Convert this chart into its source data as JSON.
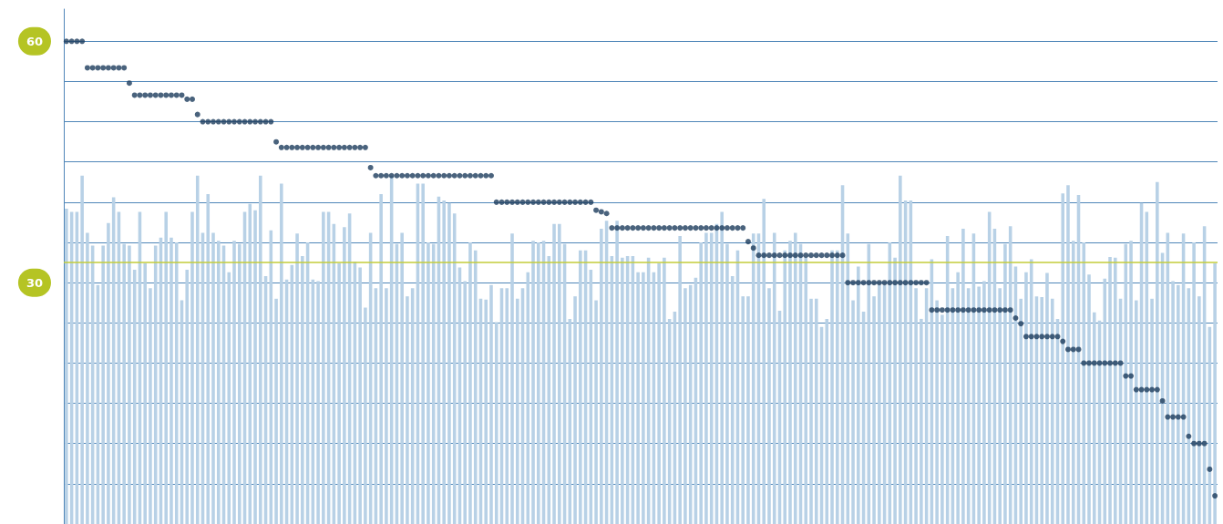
{
  "chart_data": {
    "type": "bar",
    "categories": [
      null,
      null,
      null,
      null,
      null,
      null,
      null,
      null,
      null,
      null,
      null,
      null,
      null,
      null,
      null,
      null,
      null,
      null,
      null,
      null,
      null,
      null,
      null,
      null,
      null,
      null,
      null,
      null,
      null,
      null,
      null,
      null,
      null,
      null,
      null,
      null,
      null,
      null,
      null,
      null,
      null,
      null,
      null,
      null,
      null,
      null,
      null,
      null,
      null,
      null,
      null,
      null,
      null,
      null,
      null,
      null,
      null,
      null,
      null,
      null,
      null,
      null,
      null,
      null,
      null,
      null,
      null,
      null,
      null,
      null,
      null,
      null,
      null,
      null,
      null,
      null,
      null,
      null,
      null,
      null,
      null,
      null,
      null,
      null,
      null,
      null,
      null,
      null,
      null,
      null,
      null,
      null,
      null,
      null,
      null,
      null,
      null,
      null,
      null,
      null,
      null,
      null,
      null,
      null,
      null,
      null,
      null,
      null,
      null,
      null,
      null,
      null,
      null,
      null,
      null,
      null,
      null,
      null,
      null,
      null,
      null,
      null,
      null,
      null,
      null,
      null,
      null,
      null,
      null,
      null,
      null,
      null,
      null,
      null,
      null,
      null,
      null,
      null,
      null,
      null,
      null,
      null,
      null,
      null,
      null,
      null,
      null,
      null,
      null,
      null,
      null,
      null,
      null,
      null,
      null,
      null,
      null,
      null,
      null,
      null,
      null,
      null,
      null,
      null,
      null,
      null,
      null,
      null,
      null,
      null,
      null,
      null,
      null,
      null,
      null,
      null,
      null,
      null,
      null,
      null,
      null,
      null,
      null,
      null,
      null,
      null,
      null,
      null,
      null,
      null,
      null,
      null,
      null,
      null,
      null,
      null,
      null,
      null,
      null,
      null,
      null,
      null,
      null,
      null,
      null,
      null,
      null,
      null,
      null,
      null,
      null,
      null,
      null,
      null,
      null,
      null,
      null,
      null,
      null,
      null
    ],
    "series": [
      {
        "type": "bar",
        "color": "#b8d1e6",
        "values": [
          39.2,
          38.8,
          38.8,
          43.3,
          36.2,
          34.6,
          29.7,
          34.6,
          37.4,
          40.6,
          38.8,
          34.8,
          34.6,
          31.6,
          38.8,
          32.4,
          29.3,
          34.6,
          35.6,
          38.8,
          35.6,
          35.0,
          27.8,
          31.6,
          38.8,
          43.3,
          36.2,
          41.0,
          36.2,
          35.2,
          34.6,
          31.3,
          35.2,
          34.8,
          38.8,
          39.8,
          39.0,
          43.3,
          30.8,
          36.5,
          28.0,
          42.3,
          30.4,
          32.2,
          36.1,
          33.3,
          35.0,
          30.4,
          30.2,
          38.8,
          38.8,
          37.3,
          32.4,
          36.9,
          38.6,
          32.6,
          31.9,
          26.9,
          36.2,
          29.3,
          41.0,
          29.3,
          43.3,
          34.8,
          36.2,
          28.3,
          29.3,
          42.3,
          42.3,
          35.0,
          34.8,
          40.7,
          40.2,
          39.9,
          38.6,
          31.9,
          30.2,
          35.0,
          34.0,
          28.0,
          27.9,
          29.7,
          25.1,
          29.3,
          29.3,
          36.1,
          28.0,
          29.3,
          31.3,
          35.2,
          35.0,
          35.2,
          33.3,
          37.3,
          37.3,
          34.8,
          25.5,
          28.3,
          34.0,
          34.0,
          31.6,
          27.8,
          36.7,
          37.7,
          33.3,
          37.7,
          33.1,
          33.3,
          33.3,
          31.3,
          31.3,
          33.1,
          31.3,
          32.4,
          33.1,
          25.5,
          26.4,
          35.8,
          29.3,
          29.7,
          30.6,
          35.0,
          36.2,
          36.2,
          37.3,
          38.8,
          34.8,
          30.8,
          34.0,
          28.3,
          28.3,
          36.1,
          36.1,
          40.4,
          29.3,
          36.2,
          26.5,
          34.0,
          35.2,
          36.2,
          34.8,
          33.1,
          28.0,
          28.0,
          24.5,
          25.5,
          34.0,
          34.0,
          42.1,
          36.1,
          27.8,
          32.0,
          26.4,
          34.8,
          28.3,
          29.7,
          29.7,
          35.0,
          33.1,
          43.3,
          40.2,
          40.2,
          29.3,
          25.5,
          29.3,
          32.9,
          27.8,
          26.0,
          35.8,
          29.3,
          31.3,
          36.7,
          29.3,
          36.1,
          29.5,
          30.2,
          38.8,
          36.7,
          29.3,
          34.8,
          37.0,
          32.0,
          28.0,
          31.3,
          32.9,
          28.3,
          28.2,
          31.2,
          28.0,
          25.5,
          41.1,
          42.1,
          35.2,
          40.9,
          35.0,
          31.0,
          26.3,
          25.3,
          30.5,
          33.2,
          33.1,
          28.0,
          34.8,
          35.2,
          27.8,
          39.9,
          38.8,
          28.0,
          42.5,
          33.7,
          36.2,
          30.2,
          29.7,
          36.1,
          29.3,
          35.0,
          28.3,
          37.0,
          24.5,
          32.4
        ]
      },
      {
        "type": "scatter",
        "color": "#1d3c5c",
        "values": [
          60,
          60,
          60,
          60,
          56.7,
          56.7,
          56.7,
          56.7,
          56.7,
          56.7,
          56.7,
          56.7,
          54.8,
          53.3,
          53.3,
          53.3,
          53.3,
          53.3,
          53.3,
          53.3,
          53.3,
          53.3,
          53.3,
          52.8,
          52.8,
          50.9,
          50,
          50,
          50,
          50,
          50,
          50,
          50,
          50,
          50,
          50,
          50,
          50,
          50,
          50,
          47.5,
          46.8,
          46.8,
          46.8,
          46.8,
          46.8,
          46.8,
          46.8,
          46.8,
          46.8,
          46.8,
          46.8,
          46.8,
          46.8,
          46.8,
          46.8,
          46.8,
          46.8,
          44.3,
          43.3,
          43.3,
          43.3,
          43.3,
          43.3,
          43.3,
          43.3,
          43.3,
          43.3,
          43.3,
          43.3,
          43.3,
          43.3,
          43.3,
          43.3,
          43.3,
          43.3,
          43.3,
          43.3,
          43.3,
          43.3,
          43.3,
          43.3,
          40,
          40,
          40,
          40,
          40,
          40,
          40,
          40,
          40,
          40,
          40,
          40,
          40,
          40,
          40,
          40,
          40,
          40,
          40,
          39.0,
          38.8,
          38.6,
          36.8,
          36.8,
          36.8,
          36.8,
          36.8,
          36.8,
          36.8,
          36.8,
          36.8,
          36.8,
          36.8,
          36.8,
          36.8,
          36.8,
          36.8,
          36.8,
          36.8,
          36.8,
          36.8,
          36.8,
          36.8,
          36.8,
          36.8,
          36.8,
          36.8,
          36.8,
          35.1,
          34.3,
          33.4,
          33.4,
          33.4,
          33.4,
          33.4,
          33.4,
          33.4,
          33.4,
          33.4,
          33.4,
          33.4,
          33.4,
          33.4,
          33.4,
          33.4,
          33.4,
          33.4,
          30,
          30,
          30,
          30,
          30,
          30,
          30,
          30,
          30,
          30,
          30,
          30,
          30,
          30,
          30,
          30,
          26.6,
          26.6,
          26.6,
          26.6,
          26.6,
          26.6,
          26.6,
          26.6,
          26.6,
          26.6,
          26.6,
          26.6,
          26.6,
          26.6,
          26.6,
          26.6,
          25.6,
          24.9,
          23.3,
          23.3,
          23.3,
          23.3,
          23.3,
          23.3,
          23.3,
          22.7,
          21.7,
          21.7,
          21.7,
          20,
          20,
          20,
          20,
          20,
          20,
          20,
          20,
          18.4,
          18.4,
          16.7,
          16.7,
          16.7,
          16.7,
          16.7,
          15.3,
          13.3,
          13.3,
          13.3,
          13.3,
          10.9,
          10,
          10,
          10,
          6.8,
          3.5
        ]
      }
    ],
    "ylim": [
      0,
      64
    ],
    "yticks": [
      {
        "value": 5,
        "label": null
      },
      {
        "value": 10,
        "label": null
      },
      {
        "value": 15,
        "label": null
      },
      {
        "value": 20,
        "label": null
      },
      {
        "value": 25,
        "label": null
      },
      30,
      {
        "value": 35,
        "label": null
      },
      {
        "value": 40,
        "label": null
      },
      {
        "value": 45,
        "label": null
      },
      {
        "value": 50,
        "label": null
      },
      {
        "value": 55,
        "label": null
      },
      60
    ],
    "grid": "y",
    "marker": "circle",
    "tick_labels": "y",
    "ref_lines": [
      {
        "axis": "y",
        "value": 32.5,
        "color": "#c3cc3a"
      }
    ]
  }
}
